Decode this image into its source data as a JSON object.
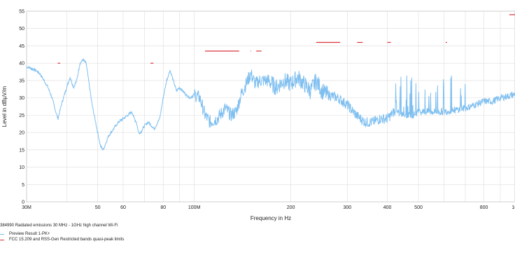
{
  "chart_data": {
    "type": "line",
    "title": "384990 Radiated emissions 30 MHz - 1GHz high channel Wi-Fi",
    "xlabel": "Frequency in Hz",
    "ylabel": "Level in dBµV/m",
    "xscale": "log",
    "xlim": [
      30000000,
      1000000000
    ],
    "ylim": [
      0,
      55
    ],
    "grid": true,
    "x_ticks": [
      {
        "value": 30000000,
        "label": "30M"
      },
      {
        "value": 50000000,
        "label": "50"
      },
      {
        "value": 60000000,
        "label": "60"
      },
      {
        "value": 80000000,
        "label": "80"
      },
      {
        "value": 100000000,
        "label": "100M"
      },
      {
        "value": 200000000,
        "label": "200"
      },
      {
        "value": 300000000,
        "label": "300"
      },
      {
        "value": 400000000,
        "label": "400"
      },
      {
        "value": 500000000,
        "label": "500"
      },
      {
        "value": 800000000,
        "label": "800"
      },
      {
        "value": 1000000000,
        "label": "1G"
      }
    ],
    "y_ticks": [
      0,
      5,
      10,
      15,
      20,
      25,
      30,
      35,
      40,
      45,
      50,
      55
    ],
    "legend_position": "bottom-left",
    "series": [
      {
        "name": "Preview Result 1-PK+",
        "color": "#7fbff0",
        "points": [
          [
            30,
            39
          ],
          [
            31,
            38.5
          ],
          [
            32,
            38
          ],
          [
            33,
            37
          ],
          [
            34,
            35
          ],
          [
            35,
            33
          ],
          [
            36,
            30
          ],
          [
            37,
            26
          ],
          [
            37.6,
            24
          ],
          [
            38.5,
            28
          ],
          [
            40,
            33
          ],
          [
            41,
            36
          ],
          [
            42,
            33
          ],
          [
            43,
            35
          ],
          [
            44,
            40
          ],
          [
            45,
            41
          ],
          [
            46,
            40
          ],
          [
            47,
            34
          ],
          [
            48,
            28
          ],
          [
            49,
            24
          ],
          [
            50,
            20
          ],
          [
            51,
            16
          ],
          [
            52,
            15
          ],
          [
            53,
            17
          ],
          [
            54,
            19
          ],
          [
            56,
            21
          ],
          [
            58,
            23
          ],
          [
            60,
            24
          ],
          [
            62,
            25
          ],
          [
            64,
            26
          ],
          [
            65,
            24
          ],
          [
            66,
            23
          ],
          [
            67,
            20
          ],
          [
            68,
            20
          ],
          [
            70,
            22
          ],
          [
            72,
            23
          ],
          [
            75,
            21
          ],
          [
            78,
            24
          ],
          [
            80,
            30
          ],
          [
            82,
            35
          ],
          [
            84,
            38
          ],
          [
            86,
            35
          ],
          [
            88,
            32
          ],
          [
            90,
            33
          ],
          [
            94,
            31
          ],
          [
            97,
            30
          ],
          [
            100,
            31
          ],
          [
            104,
            30
          ],
          [
            108,
            25
          ],
          [
            112,
            23
          ],
          [
            118,
            24
          ],
          [
            125,
            27
          ],
          [
            130,
            25
          ],
          [
            135,
            26
          ],
          [
            140,
            31
          ],
          [
            145,
            34
          ],
          [
            150,
            37
          ],
          [
            155,
            34
          ],
          [
            160,
            35
          ],
          [
            170,
            35
          ],
          [
            180,
            33
          ],
          [
            190,
            35
          ],
          [
            200,
            34
          ],
          [
            210,
            36
          ],
          [
            220,
            34
          ],
          [
            230,
            32
          ],
          [
            240,
            35
          ],
          [
            250,
            32
          ],
          [
            260,
            31
          ],
          [
            280,
            30
          ],
          [
            300,
            28
          ],
          [
            320,
            25
          ],
          [
            340,
            23
          ],
          [
            360,
            23
          ],
          [
            380,
            24
          ],
          [
            400,
            24
          ],
          [
            420,
            26
          ],
          [
            450,
            25
          ],
          [
            480,
            25
          ],
          [
            500,
            26
          ],
          [
            550,
            26
          ],
          [
            600,
            26
          ],
          [
            650,
            26.5
          ],
          [
            700,
            27
          ],
          [
            750,
            28
          ],
          [
            800,
            29
          ],
          [
            850,
            29
          ],
          [
            900,
            30
          ],
          [
            950,
            30.5
          ],
          [
            1000,
            31
          ]
        ]
      },
      {
        "name": "FCC 15.209 and RSS-Gen Restricted bands quasi-peak limits",
        "color": "#d9343a",
        "segments": [
          [
            [
              37.5,
              40
            ],
            [
              38.2,
              40
            ]
          ],
          [
            [
              73,
              40
            ],
            [
              74.6,
              40
            ]
          ],
          [
            [
              108,
              43.5
            ],
            [
              138,
              43.5
            ]
          ],
          [
            [
              149.9,
              43.5
            ],
            [
              150.5,
              43.5
            ]
          ],
          [
            [
              156,
              43.5
            ],
            [
              162,
              43.5
            ]
          ],
          [
            [
              240,
              46
            ],
            [
              285,
              46
            ]
          ],
          [
            [
              322,
              46
            ],
            [
              335,
              46
            ]
          ],
          [
            [
              399.9,
              46
            ],
            [
              410,
              46
            ]
          ],
          [
            [
              608,
              46
            ],
            [
              614,
              46
            ]
          ],
          [
            [
              960,
              54
            ],
            [
              1000,
              54
            ]
          ]
        ]
      }
    ]
  }
}
